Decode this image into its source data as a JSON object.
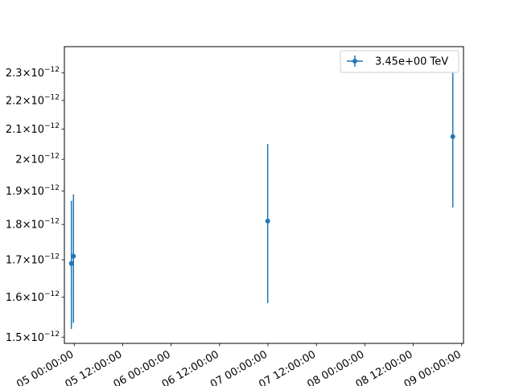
{
  "chart_data": {
    "type": "scatter",
    "title": "",
    "xlabel": "",
    "ylabel": "",
    "yscale": "log",
    "grid": false,
    "legend": {
      "placement": "top-right"
    },
    "xlim": [
      "2019-12-04T21:33:00",
      "2019-12-09T00:27:00"
    ],
    "ylim": [
      1.485e-12,
      2.4e-12
    ],
    "x_ticks": [
      {
        "value": "2019-12-05T00:00:00",
        "label": "05 00:00:00"
      },
      {
        "value": "2019-12-05T12:00:00",
        "label": "05 12:00:00"
      },
      {
        "value": "2019-12-06T00:00:00",
        "label": "06 00:00:00"
      },
      {
        "value": "2019-12-06T12:00:00",
        "label": "06 12:00:00"
      },
      {
        "value": "2019-12-07T00:00:00",
        "label": "07 00:00:00"
      },
      {
        "value": "2019-12-07T12:00:00",
        "label": "07 12:00:00"
      },
      {
        "value": "2019-12-08T00:00:00",
        "label": "08 00:00:00"
      },
      {
        "value": "2019-12-08T12:00:00",
        "label": "08 12:00:00"
      },
      {
        "value": "2019-12-09T00:00:00",
        "label": "09 00:00:00"
      }
    ],
    "y_ticks": [
      {
        "value": 1.5e-12,
        "mant": "1.5",
        "exp": "−12"
      },
      {
        "value": 1.6e-12,
        "mant": "1.6",
        "exp": "−12"
      },
      {
        "value": 1.7e-12,
        "mant": "1.7",
        "exp": "−12"
      },
      {
        "value": 1.8e-12,
        "mant": "1.8",
        "exp": "−12"
      },
      {
        "value": 1.9e-12,
        "mant": "1.9",
        "exp": "−12"
      },
      {
        "value": 2e-12,
        "mant": "2",
        "exp": "−12"
      },
      {
        "value": 2.1e-12,
        "mant": "2.1",
        "exp": "−12"
      },
      {
        "value": 2.2e-12,
        "mant": "2.2",
        "exp": "−12"
      },
      {
        "value": 2.3e-12,
        "mant": "2.3",
        "exp": "−12"
      }
    ],
    "series": [
      {
        "name": "3.45e+00 TeV",
        "color": "#1f77b4",
        "points": [
          {
            "x": "2019-12-04T23:17:00",
            "y": 1.69e-12,
            "ylo": 1.52e-12,
            "yhi": 1.87e-12
          },
          {
            "x": "2019-12-04T23:48:00",
            "y": 1.71e-12,
            "ylo": 1.535e-12,
            "yhi": 1.89e-12
          },
          {
            "x": "2019-12-06T23:56:00",
            "y": 1.81e-12,
            "ylo": 1.585e-12,
            "yhi": 2.05e-12
          },
          {
            "x": "2019-12-08T21:48:00",
            "y": 2.075e-12,
            "ylo": 1.85e-12,
            "yhi": 2.3e-12
          }
        ]
      }
    ]
  }
}
